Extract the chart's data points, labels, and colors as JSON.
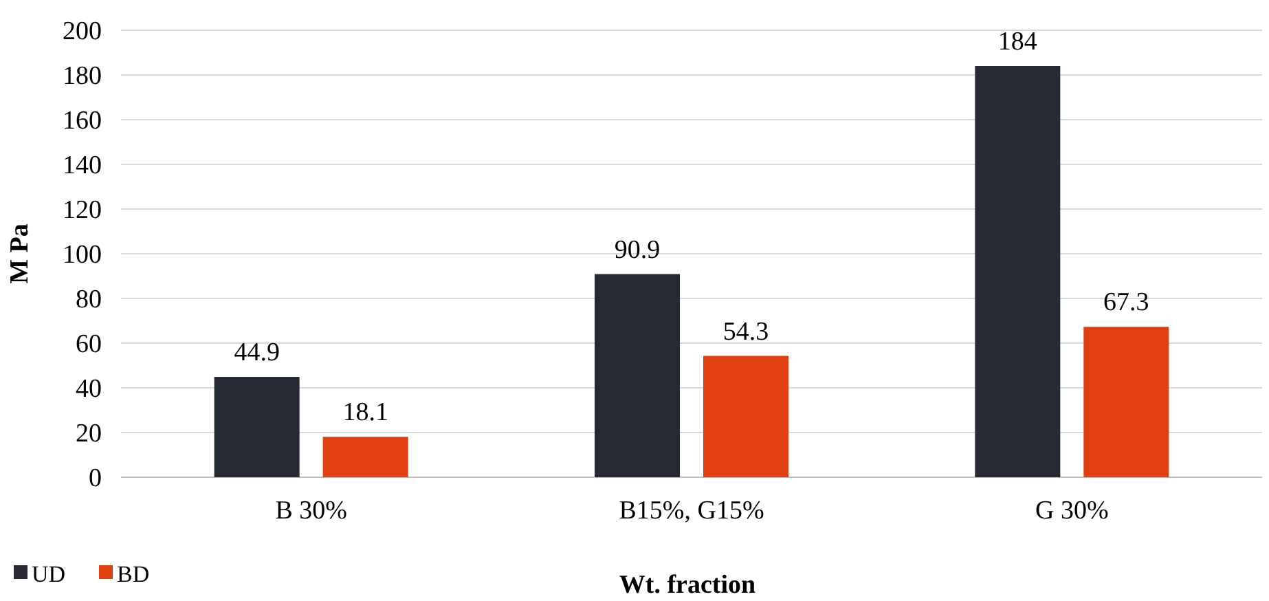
{
  "chart_data": {
    "type": "bar",
    "xlabel": "Wt. fraction",
    "ylabel": "M Pa",
    "categories": [
      "B 30%",
      "B15%, G15%",
      "G 30%"
    ],
    "series": [
      {
        "name": "UD",
        "color": "#262b33",
        "values": [
          44.9,
          90.9,
          184
        ]
      },
      {
        "name": "BD",
        "color": "#e0400f",
        "values": [
          18.1,
          54.3,
          67.3
        ]
      }
    ],
    "ylim": [
      0,
      200
    ],
    "yticks": [
      0,
      20,
      40,
      60,
      80,
      100,
      120,
      140,
      160,
      180,
      200
    ],
    "grid": "y",
    "legend": "bottom left",
    "data_labels": true
  }
}
